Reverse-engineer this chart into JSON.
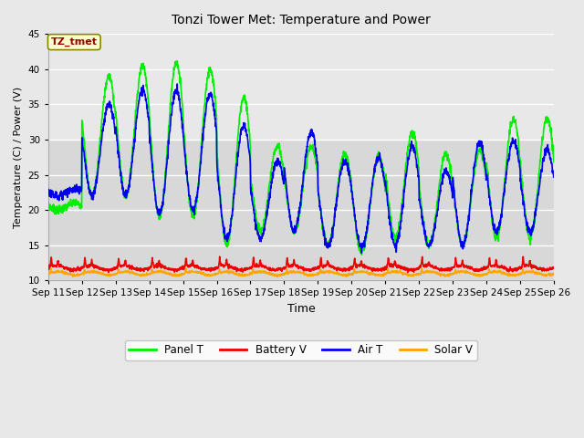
{
  "title": "Tonzi Tower Met: Temperature and Power",
  "xlabel": "Time",
  "ylabel": "Temperature (C) / Power (V)",
  "ylim": [
    10,
    45
  ],
  "yticks": [
    10,
    15,
    20,
    25,
    30,
    35,
    40,
    45
  ],
  "annotation_text": "TZ_tmet",
  "annotation_color": "#990000",
  "annotation_bg": "#ffffcc",
  "annotation_border": "#888800",
  "xtick_labels": [
    "Sep 11",
    "Sep 12",
    "Sep 13",
    "Sep 14",
    "Sep 15",
    "Sep 16",
    "Sep 17",
    "Sep 18",
    "Sep 19",
    "Sep 20",
    "Sep 21",
    "Sep 22",
    "Sep 23",
    "Sep 24",
    "Sep 25",
    "Sep 26"
  ],
  "bg_color": "#e8e8e8",
  "plot_bg_light": "#f5f5f5",
  "plot_bg_dark": "#dcdcdc",
  "grid_color": "#ffffff",
  "panel_color": "#00ee00",
  "battery_color": "#ee0000",
  "air_color": "#0000ee",
  "solar_color": "#ffa500",
  "line_width": 1.2,
  "legend_labels": [
    "Panel T",
    "Battery V",
    "Air T",
    "Solar V"
  ]
}
